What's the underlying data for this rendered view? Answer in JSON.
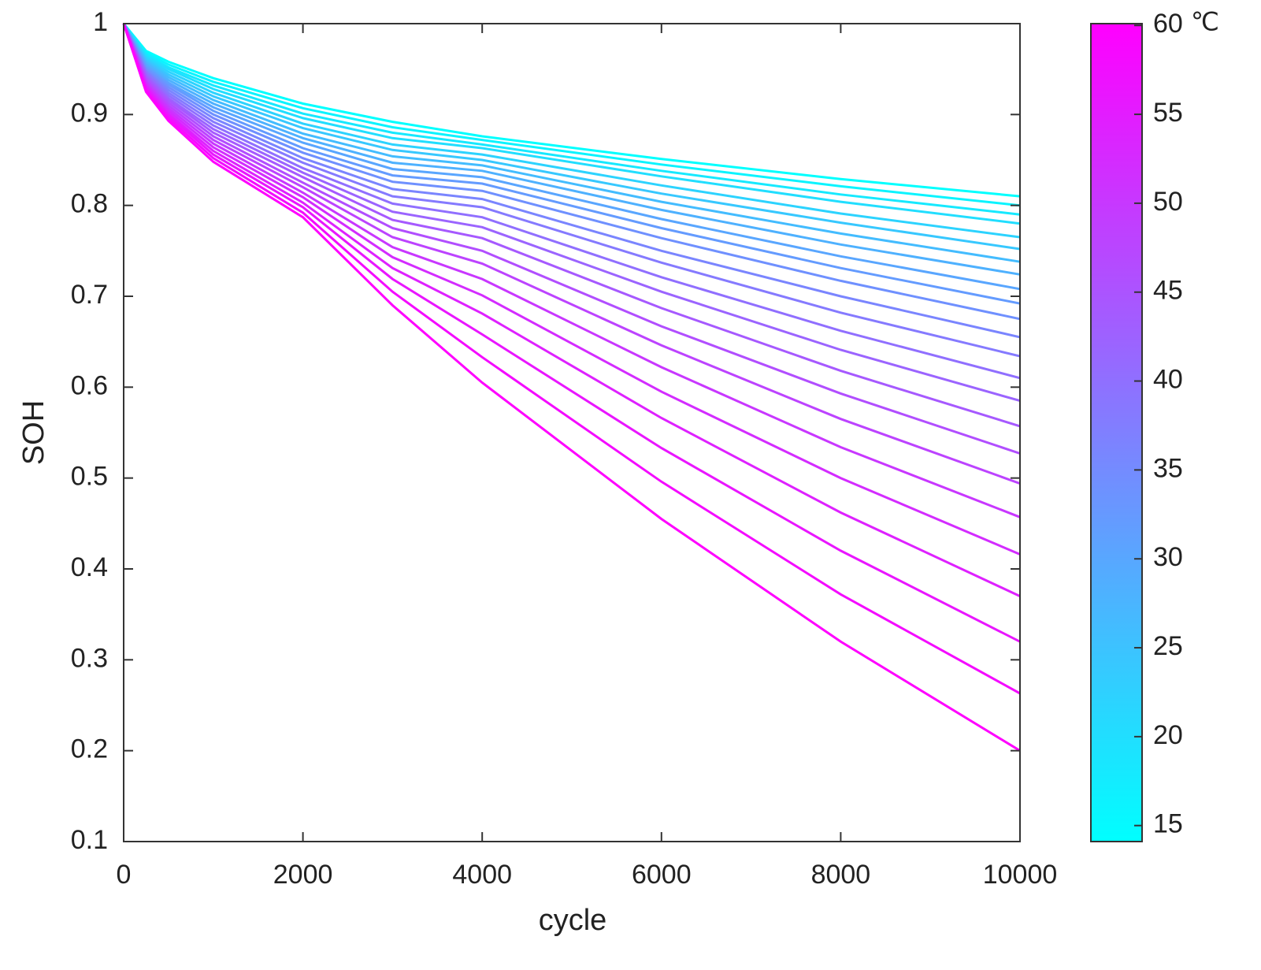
{
  "chart_data": {
    "type": "line",
    "xlabel": "cycle",
    "ylabel": "SOH",
    "x": [
      0,
      250,
      500,
      1000,
      2000,
      3000,
      4000,
      6000,
      8000,
      10000
    ],
    "xlim": [
      0,
      10000
    ],
    "xticks": [
      0,
      2000,
      4000,
      6000,
      8000,
      10000
    ],
    "ylim": [
      0.1,
      1
    ],
    "yticks": [
      0.1,
      0.2,
      0.3,
      0.4,
      0.5,
      0.6,
      0.7,
      0.8,
      0.9,
      1
    ],
    "grid": false,
    "series": [
      {
        "color": "#00ffff",
        "values": [
          1,
          0.97,
          0.958,
          0.94,
          0.912,
          0.892,
          0.876,
          0.851,
          0.829,
          0.81
        ]
      },
      {
        "color": "#0bf4ff",
        "values": [
          1,
          0.968,
          0.955,
          0.936,
          0.907,
          0.886,
          0.872,
          0.845,
          0.821,
          0.8
        ]
      },
      {
        "color": "#16e9ff",
        "values": [
          1,
          0.966,
          0.952,
          0.932,
          0.901,
          0.88,
          0.867,
          0.838,
          0.812,
          0.79
        ]
      },
      {
        "color": "#21deff",
        "values": [
          1,
          0.964,
          0.95,
          0.928,
          0.896,
          0.874,
          0.863,
          0.832,
          0.804,
          0.78
        ]
      },
      {
        "color": "#2cd3ff",
        "values": [
          1,
          0.962,
          0.947,
          0.924,
          0.89,
          0.867,
          0.856,
          0.822,
          0.791,
          0.765
        ]
      },
      {
        "color": "#37c8ff",
        "values": [
          1,
          0.96,
          0.944,
          0.92,
          0.885,
          0.861,
          0.85,
          0.813,
          0.781,
          0.752
        ]
      },
      {
        "color": "#43bcff",
        "values": [
          1,
          0.958,
          0.941,
          0.916,
          0.879,
          0.854,
          0.844,
          0.804,
          0.769,
          0.738
        ]
      },
      {
        "color": "#4eb1ff",
        "values": [
          1,
          0.956,
          0.938,
          0.912,
          0.874,
          0.847,
          0.838,
          0.795,
          0.757,
          0.724
        ]
      },
      {
        "color": "#59a6ff",
        "values": [
          1,
          0.954,
          0.935,
          0.908,
          0.869,
          0.84,
          0.831,
          0.785,
          0.744,
          0.708
        ]
      },
      {
        "color": "#649bff",
        "values": [
          1,
          0.952,
          0.933,
          0.904,
          0.863,
          0.833,
          0.824,
          0.775,
          0.731,
          0.692
        ]
      },
      {
        "color": "#6f90ff",
        "values": [
          1,
          0.95,
          0.93,
          0.9,
          0.858,
          0.826,
          0.816,
          0.764,
          0.717,
          0.675
        ]
      },
      {
        "color": "#7a85ff",
        "values": [
          1,
          0.948,
          0.927,
          0.896,
          0.852,
          0.818,
          0.807,
          0.75,
          0.7,
          0.655
        ]
      },
      {
        "color": "#857aff",
        "values": [
          1,
          0.947,
          0.924,
          0.892,
          0.847,
          0.81,
          0.798,
          0.737,
          0.682,
          0.634
        ]
      },
      {
        "color": "#906fff",
        "values": [
          1,
          0.945,
          0.921,
          0.888,
          0.841,
          0.802,
          0.787,
          0.721,
          0.662,
          0.61
        ]
      },
      {
        "color": "#9b64ff",
        "values": [
          1,
          0.943,
          0.918,
          0.884,
          0.836,
          0.793,
          0.776,
          0.705,
          0.641,
          0.585
        ]
      },
      {
        "color": "#a659ff",
        "values": [
          1,
          0.941,
          0.916,
          0.88,
          0.831,
          0.784,
          0.764,
          0.687,
          0.618,
          0.557
        ]
      },
      {
        "color": "#b14eff",
        "values": [
          1,
          0.939,
          0.913,
          0.876,
          0.825,
          0.775,
          0.75,
          0.667,
          0.593,
          0.527
        ]
      },
      {
        "color": "#bc43ff",
        "values": [
          1,
          0.937,
          0.91,
          0.872,
          0.82,
          0.765,
          0.736,
          0.646,
          0.565,
          0.494
        ]
      },
      {
        "color": "#c837ff",
        "values": [
          1,
          0.935,
          0.907,
          0.868,
          0.814,
          0.754,
          0.719,
          0.622,
          0.534,
          0.457
        ]
      },
      {
        "color": "#d32cff",
        "values": [
          1,
          0.933,
          0.904,
          0.864,
          0.809,
          0.743,
          0.701,
          0.595,
          0.5,
          0.416
        ]
      },
      {
        "color": "#de21ff",
        "values": [
          1,
          0.931,
          0.901,
          0.86,
          0.803,
          0.731,
          0.681,
          0.566,
          0.462,
          0.37
        ]
      },
      {
        "color": "#e916ff",
        "values": [
          1,
          0.929,
          0.899,
          0.856,
          0.798,
          0.719,
          0.658,
          0.533,
          0.42,
          0.32
        ]
      },
      {
        "color": "#f40bff",
        "values": [
          1,
          0.927,
          0.896,
          0.852,
          0.792,
          0.705,
          0.633,
          0.496,
          0.372,
          0.263
        ]
      },
      {
        "color": "#ff00ff",
        "values": [
          1,
          0.925,
          0.893,
          0.848,
          0.787,
          0.69,
          0.605,
          0.455,
          0.32,
          0.2
        ]
      }
    ],
    "colorbar": {
      "colors": [
        "#00ffff",
        "#ff00ff"
      ],
      "lim": [
        14.1,
        60.1
      ],
      "ticks": [
        15,
        20,
        25,
        30,
        35,
        40,
        45,
        50,
        55,
        60
      ],
      "unit": "℃"
    }
  }
}
